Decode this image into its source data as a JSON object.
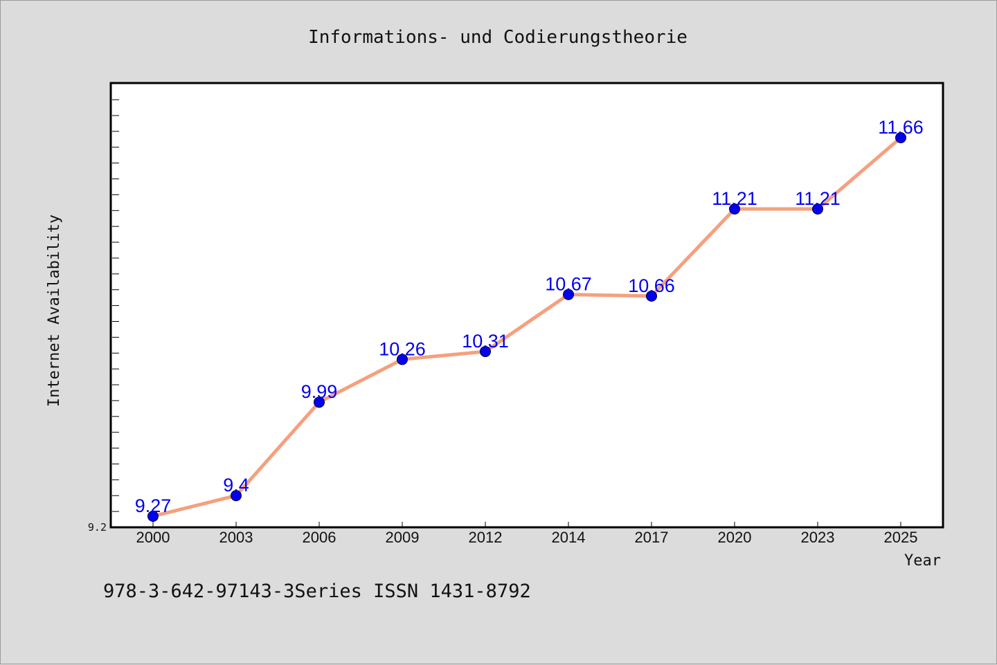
{
  "chart_data": {
    "type": "line",
    "title": "Informations- und Codierungstheorie",
    "xlabel": "Year",
    "ylabel": "Internet Availability",
    "categories": [
      "2000",
      "2003",
      "2006",
      "2009",
      "2012",
      "2014",
      "2017",
      "2020",
      "2023",
      "2025"
    ],
    "series": [
      {
        "values": [
          9.27,
          9.4,
          9.99,
          10.26,
          10.31,
          10.67,
          10.66,
          11.21,
          11.21,
          11.66
        ],
        "labels": [
          "9.27",
          "9.4",
          "9.99",
          "10.26",
          "10.31",
          "10.67",
          "10.66",
          "11.21",
          "11.21",
          "11.66"
        ]
      }
    ],
    "ylim": [
      9.2,
      12.0
    ],
    "y_tick_labels": [
      "9.2"
    ],
    "line_color": "#f5a07e",
    "marker_color": "#0000ee",
    "label_color": "#0000ee",
    "grid": false
  },
  "footer": {
    "text": "978-3-642-97143-3Series ISSN 1431-8792"
  }
}
